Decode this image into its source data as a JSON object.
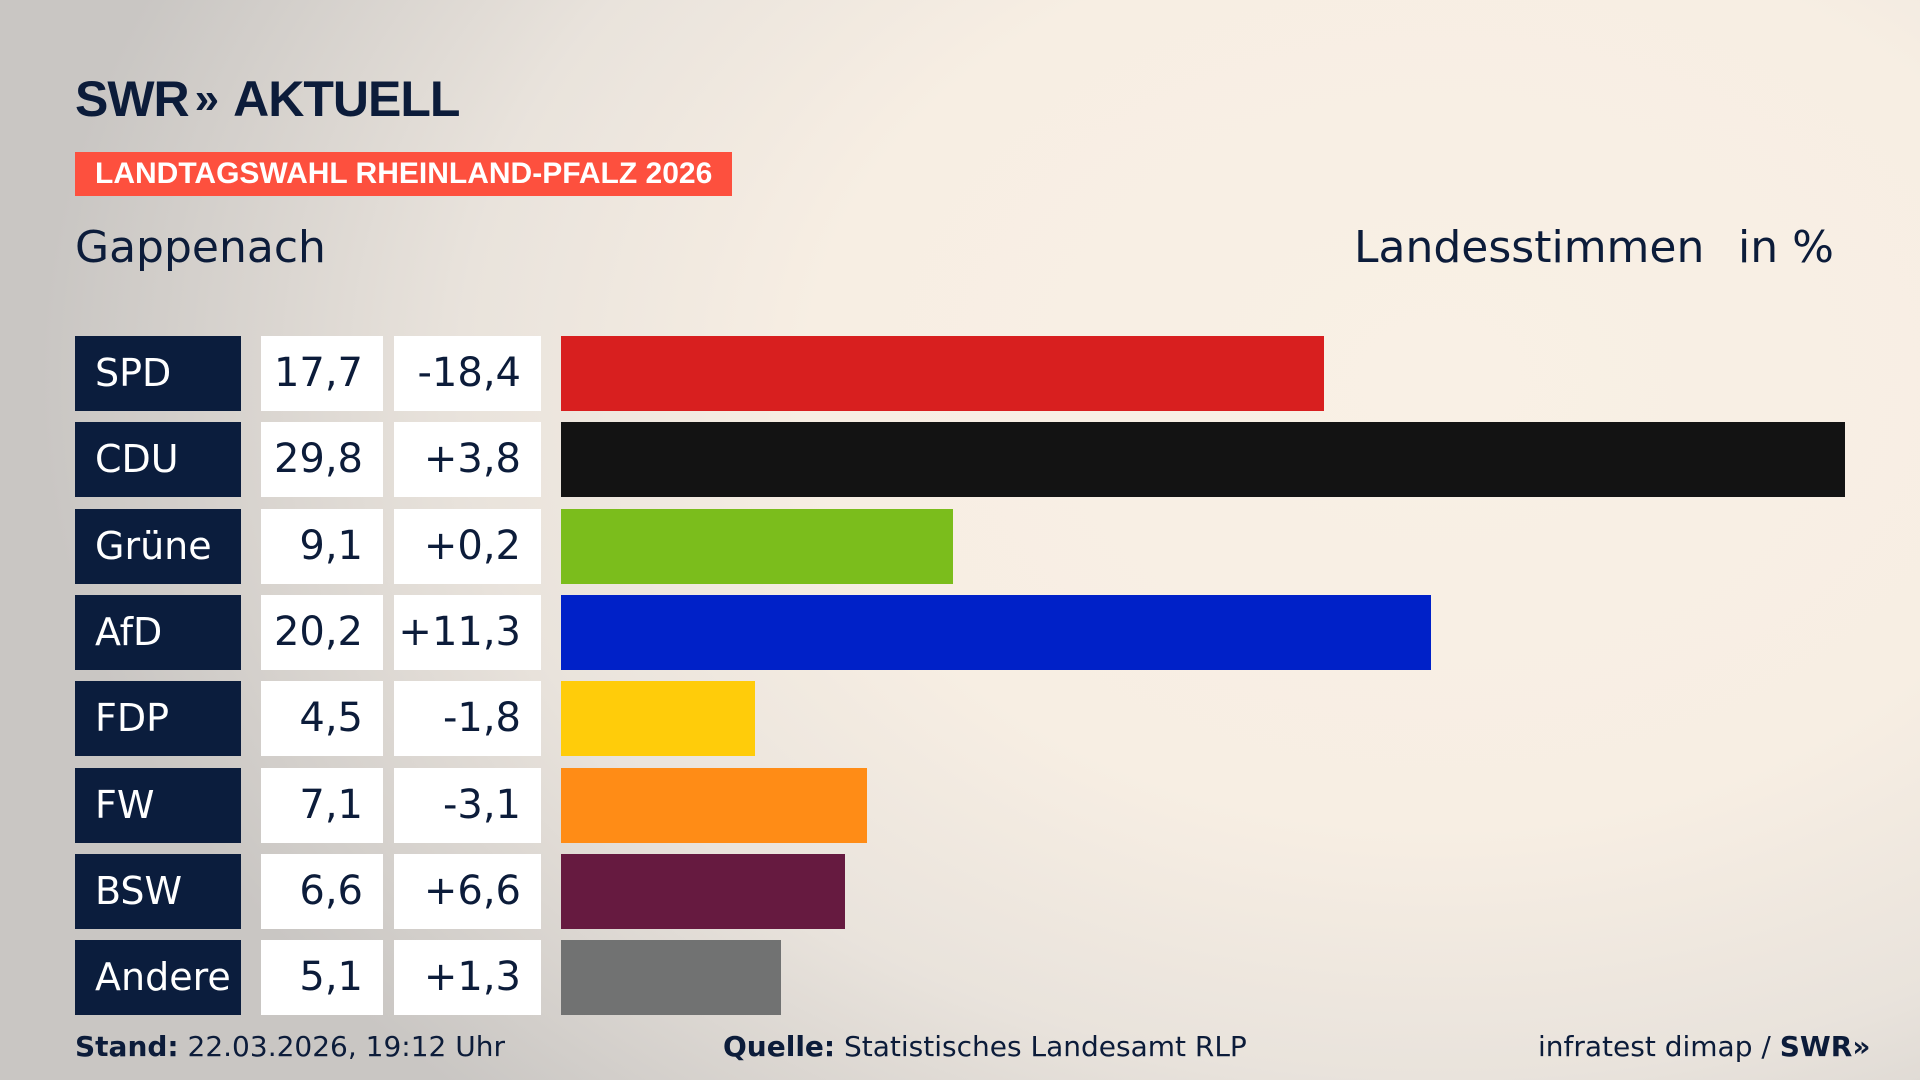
{
  "brand": {
    "logo_text": "SWR",
    "logo_chevrons": "»",
    "logo_suffix": "AKTUELL"
  },
  "banner": "LANDTAGSWAHL RHEINLAND-PFALZ 2026",
  "place": "Gappenach",
  "vote_type": "Landesstimmen",
  "unit": "in %",
  "chart_data": {
    "type": "bar",
    "orientation": "horizontal",
    "categories": [
      "SPD",
      "CDU",
      "Grüne",
      "AfD",
      "FDP",
      "FW",
      "BSW",
      "Andere"
    ],
    "values": [
      17.7,
      29.8,
      9.1,
      20.2,
      4.5,
      7.1,
      6.6,
      5.1
    ],
    "values_label": [
      "17,7",
      "29,8",
      "9,1",
      "20,2",
      "4,5",
      "7,1",
      "6,6",
      "5,1"
    ],
    "diff_label": [
      "-18,4",
      "+3,8",
      "+0,2",
      "+11,3",
      "-1,8",
      "-3,1",
      "+6,6",
      "+1,3"
    ],
    "colors": [
      "#d81f1f",
      "#131313",
      "#7bbd1c",
      "#0021c8",
      "#ffcc0a",
      "#ff8c16",
      "#661a40",
      "#717272"
    ],
    "xlim": [
      0,
      29.8
    ]
  },
  "footer": {
    "stand_label": "Stand:",
    "stand_value": "22.03.2026, 19:12 Uhr",
    "source_label": "Quelle:",
    "source_value": "Statistisches Landesamt RLP",
    "credit": "infratest dimap /",
    "credit_logo": "SWR»"
  }
}
